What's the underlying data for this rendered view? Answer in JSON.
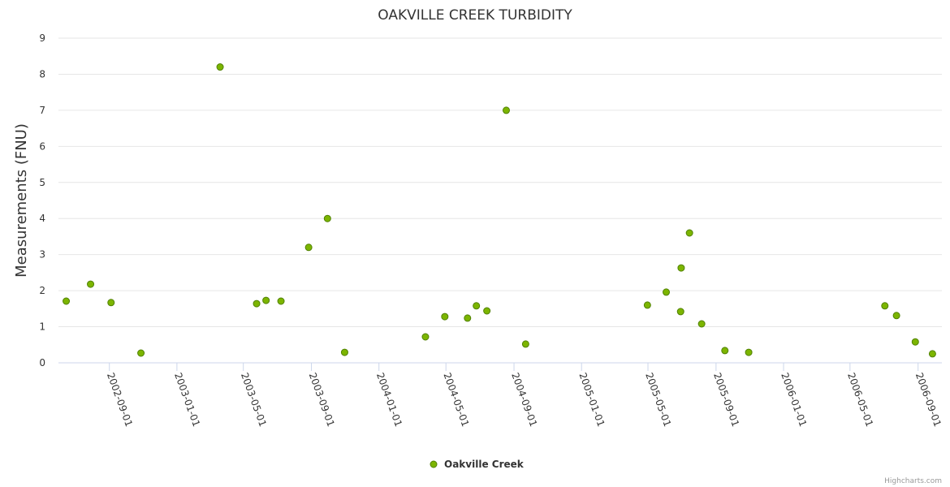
{
  "chart_data": {
    "type": "scatter",
    "title": "OAKVILLE CREEK TURBIDITY",
    "xlabel": "",
    "ylabel": "Measurements (FNU)",
    "ylim": [
      0,
      9
    ],
    "xlim": [
      "2002-06-01",
      "2006-10-14"
    ],
    "yticks": [
      0,
      1,
      2,
      3,
      4,
      5,
      6,
      7,
      8,
      9
    ],
    "xticks": [
      "2002-09-01",
      "2003-01-01",
      "2003-05-01",
      "2003-09-01",
      "2004-01-01",
      "2004-05-01",
      "2004-09-01",
      "2005-01-01",
      "2005-05-01",
      "2005-09-01",
      "2006-01-01",
      "2006-05-01",
      "2006-09-01"
    ],
    "grid": true,
    "legend_position": "bottom-center",
    "series": [
      {
        "name": "Oakville Creek",
        "color": "#7cb500",
        "border": "#4f8000",
        "points": [
          [
            "2002-06-15",
            1.71
          ],
          [
            "2002-07-29",
            2.18
          ],
          [
            "2002-09-04",
            1.67
          ],
          [
            "2002-10-28",
            0.27
          ],
          [
            "2003-03-20",
            8.2
          ],
          [
            "2003-05-25",
            1.64
          ],
          [
            "2003-06-11",
            1.73
          ],
          [
            "2003-07-08",
            1.71
          ],
          [
            "2003-08-27",
            3.2
          ],
          [
            "2003-09-30",
            4.0
          ],
          [
            "2003-10-31",
            0.29
          ],
          [
            "2004-03-25",
            0.72
          ],
          [
            "2004-04-29",
            1.28
          ],
          [
            "2004-06-09",
            1.24
          ],
          [
            "2004-06-25",
            1.58
          ],
          [
            "2004-07-14",
            1.44
          ],
          [
            "2004-08-18",
            7.0
          ],
          [
            "2004-09-22",
            0.52
          ],
          [
            "2005-04-30",
            1.6
          ],
          [
            "2005-06-03",
            1.96
          ],
          [
            "2005-06-29",
            1.42
          ],
          [
            "2005-06-30",
            2.63
          ],
          [
            "2005-07-15",
            3.6
          ],
          [
            "2005-08-06",
            1.08
          ],
          [
            "2005-09-17",
            0.34
          ],
          [
            "2005-10-30",
            0.29
          ],
          [
            "2006-07-03",
            1.58
          ],
          [
            "2006-07-24",
            1.31
          ],
          [
            "2006-08-27",
            0.58
          ],
          [
            "2006-09-27",
            0.25
          ]
        ]
      }
    ]
  },
  "credits": "Highcharts.com"
}
